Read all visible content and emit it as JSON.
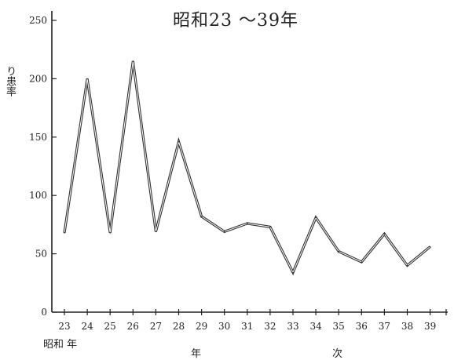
{
  "chart_data": {
    "type": "line",
    "title": "昭和23 ～39年",
    "ylabel": "り患率",
    "xlabel_left": "年",
    "xlabel_right": "次",
    "era_label": "昭和 年",
    "ylim": [
      0,
      260
    ],
    "y_ticks": [
      "0",
      "50",
      "100",
      "150",
      "200",
      "250"
    ],
    "y_tick_values": [
      0,
      50,
      100,
      150,
      200,
      250
    ],
    "categories": [
      "23",
      "24",
      "25",
      "26",
      "27",
      "28",
      "29",
      "30",
      "31",
      "32",
      "33",
      "34",
      "35",
      "36",
      "37",
      "38",
      "39"
    ],
    "series": [
      {
        "values": [
          68,
          200,
          68,
          215,
          69,
          146,
          82,
          69,
          76,
          73,
          34,
          81,
          52,
          43,
          67,
          40,
          56
        ]
      }
    ],
    "grid": false,
    "legend": "none",
    "line_color": "#333333"
  }
}
